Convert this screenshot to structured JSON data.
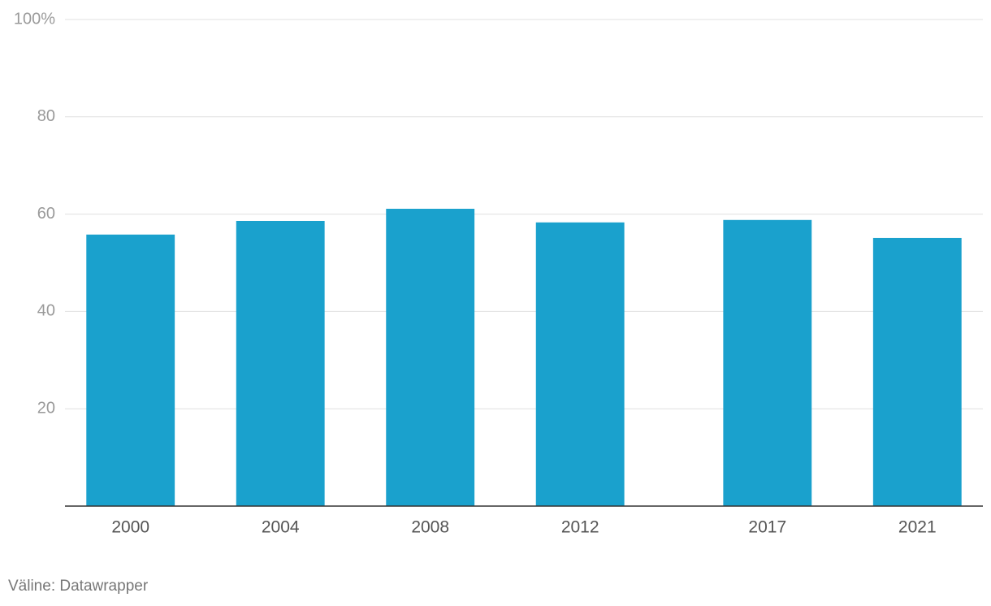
{
  "chart_data": {
    "type": "bar",
    "x": [
      2000,
      2004,
      2008,
      2012,
      2017,
      2021
    ],
    "values": [
      55.8,
      58.6,
      61.1,
      58.3,
      58.8,
      55.1
    ],
    "color": "#1aa1cd",
    "xlim": [
      1998.25,
      2022.75
    ],
    "ylim": [
      0,
      100
    ],
    "yticks": [
      20,
      40,
      60,
      80,
      {
        "value": 100,
        "label": "100%"
      }
    ],
    "grid": true,
    "source": "Väline: Datawrapper"
  }
}
